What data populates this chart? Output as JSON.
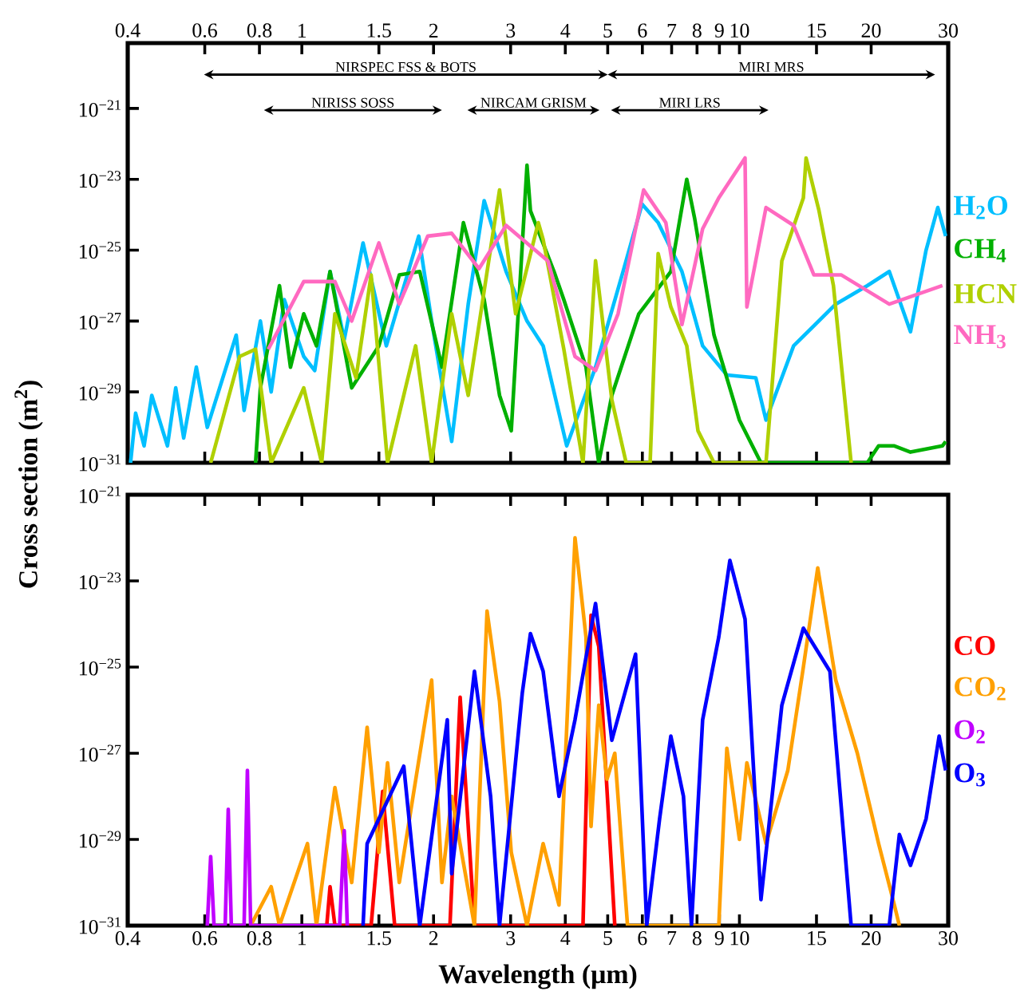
{
  "chart_data": [
    {
      "type": "line",
      "log": "xy",
      "ylabel": "Cross section (m$^{2}$)",
      "legend": "right",
      "xlim": [
        0.4,
        30
      ],
      "xticks": [
        0.4,
        0.6,
        0.8,
        1,
        1.5,
        2,
        3,
        4,
        5,
        6,
        7,
        8,
        9,
        10,
        15,
        20,
        30
      ],
      "ylim": [
        1e-31,
        7e-20
      ],
      "yticks": [
        {
          "value": 1e-31,
          "label": "10$^{−31}$"
        },
        {
          "value": 1e-29,
          "label": "10$^{−29}$"
        },
        {
          "value": 1e-27,
          "label": "10$^{−27}$"
        },
        {
          "value": 1e-25,
          "label": "10$^{−25}$"
        },
        {
          "value": 1e-23,
          "label": "10$^{−23}$"
        },
        {
          "value": 1e-21,
          "label": "10$^{−21}$"
        }
      ],
      "annotations": [
        "NIRSPEC FSS & BOTS",
        "MIRI MRS",
        "NIRISS SOSS",
        "NIRCAM GRISM",
        "MIRI LRS"
      ],
      "series": [
        {
          "name": "H$_{2}$O",
          "color": "#00bfff",
          "x": [
            0.406,
            0.417,
            0.436,
            0.454,
            0.493,
            0.515,
            0.537,
            0.574,
            0.608,
            0.708,
            0.738,
            0.804,
            0.851,
            0.912,
            1.01,
            1.07,
            1.16,
            1.25,
            1.38,
            1.56,
            1.85,
            1.98,
            2.2,
            2.4,
            2.61,
            2.93,
            3.27,
            3.56,
            4.03,
            4.69,
            5.42,
            5.99,
            6.52,
            7.39,
            8.24,
            9.36,
            10.9,
            11.5,
            13.3,
            16.6,
            19.6,
            22.0,
            24.6,
            26.7,
            28.4,
            29.6
          ],
          "values": [
            1e-31,
            2.5e-30,
            3e-31,
            8e-30,
            3e-31,
            1.3e-29,
            5e-31,
            5e-29,
            1e-30,
            4e-28,
            3e-30,
            1e-27,
            1e-29,
            4e-27,
            1e-28,
            4e-29,
            2.5e-26,
            3e-28,
            1.6e-25,
            2e-28,
            2.5e-25,
            1e-27,
            4e-31,
            3e-27,
            2.5e-24,
            2.5e-26,
            1e-27,
            2e-28,
            3e-31,
            5e-29,
            2.5e-26,
            2e-24,
            6e-25,
            2.5e-26,
            2e-28,
            3e-29,
            2.5e-29,
            1.6e-30,
            2e-28,
            3e-27,
            1e-26,
            2.5e-26,
            5e-28,
            1e-25,
            1.6e-24,
            2.5e-25
          ]
        },
        {
          "name": "CH$_{4}$",
          "color": "#00b000",
          "x": [
            0.784,
            0.804,
            0.889,
            0.942,
            1.01,
            1.08,
            1.16,
            1.3,
            1.5,
            1.67,
            1.86,
            2.09,
            2.34,
            2.61,
            2.83,
            3.01,
            3.27,
            3.33,
            3.77,
            3.97,
            4.46,
            4.77,
            5.11,
            5.89,
            6.97,
            7.58,
            7.9,
            8.75,
            10.0,
            11.2,
            19.6,
            20.8,
            22.6,
            24.6,
            29.1,
            29.6
          ],
          "values": [
            1e-31,
            1.3e-29,
            1e-26,
            5e-29,
            1.6e-27,
            2e-28,
            2.5e-26,
            1.3e-29,
            2e-28,
            2e-26,
            2.5e-26,
            5e-29,
            6e-25,
            4e-27,
            8e-30,
            8e-31,
            2.5e-23,
            1.3e-24,
            2.5e-26,
            4e-27,
            5e-29,
            1e-31,
            8e-30,
            1.6e-27,
            2.5e-26,
            1e-23,
            8e-25,
            4e-28,
            1.6e-30,
            1e-31,
            1e-31,
            3e-31,
            3e-31,
            2e-31,
            3e-31,
            4e-31
          ]
        },
        {
          "name": "HCN",
          "color": "#b0d000",
          "x": [
            0.619,
            0.721,
            0.784,
            0.851,
            1.01,
            1.11,
            1.19,
            1.33,
            1.44,
            1.57,
            1.82,
            1.98,
            2.2,
            2.4,
            2.83,
            3.08,
            3.47,
            3.56,
            3.97,
            4.39,
            4.69,
            5.11,
            5.51,
            6.25,
            6.52,
            6.97,
            7.58,
            8.04,
            8.75,
            11.5,
            12.5,
            14.0,
            14.2,
            15.2,
            16.4,
            18.0
          ],
          "values": [
            1e-31,
            1e-28,
            1.6e-28,
            1e-31,
            1.3e-29,
            1e-31,
            1.6e-27,
            2.5e-29,
            2e-26,
            1e-31,
            2e-28,
            1e-31,
            1.6e-27,
            8e-30,
            5e-24,
            1.6e-27,
            6e-25,
            2e-25,
            1.6e-28,
            1e-31,
            5e-26,
            6e-30,
            1e-31,
            1e-31,
            8e-26,
            2.5e-27,
            2e-28,
            8e-31,
            1e-31,
            1e-31,
            5e-26,
            3e-24,
            4e-23,
            1.3e-24,
            1e-26,
            1e-31
          ]
        },
        {
          "name": "NH$_{3}$",
          "color": "#ff69c0",
          "x": [
            0.838,
            1.01,
            1.19,
            1.3,
            1.5,
            1.67,
            1.94,
            2.2,
            2.54,
            2.93,
            3.65,
            4.21,
            4.69,
            5.28,
            6.04,
            6.79,
            7.39,
            8.24,
            8.97,
            10.3,
            10.4,
            11.5,
            13.3,
            14.8,
            17.1,
            22.0,
            29.1
          ],
          "values": [
            1.6e-28,
            1.3e-26,
            1.3e-26,
            1e-27,
            1.6e-25,
            3e-27,
            2.5e-25,
            3e-25,
            3e-26,
            5e-25,
            5e-26,
            1e-28,
            4e-29,
            1.6e-27,
            5e-24,
            6e-25,
            8e-28,
            4e-25,
            3e-24,
            4e-23,
            2.5e-27,
            1.6e-24,
            5e-25,
            2e-26,
            2e-26,
            3e-27,
            1e-26
          ]
        }
      ]
    },
    {
      "type": "line",
      "log": "xy",
      "xlabel": "Wavelength (μm)",
      "legend": "right",
      "xlim": [
        0.4,
        30
      ],
      "xticks": [
        0.4,
        0.6,
        0.8,
        1,
        1.5,
        2,
        3,
        4,
        5,
        6,
        7,
        8,
        9,
        10,
        15,
        20,
        30
      ],
      "ylim": [
        1e-31,
        1e-21
      ],
      "yticks": [
        {
          "value": 1e-31,
          "label": "10$^{−31}$"
        },
        {
          "value": 1e-29,
          "label": "10$^{−29}$"
        },
        {
          "value": 1e-27,
          "label": "10$^{−27}$"
        },
        {
          "value": 1e-25,
          "label": "10$^{−25}$"
        },
        {
          "value": 1e-23,
          "label": "10$^{−23}$"
        },
        {
          "value": 1e-21,
          "label": "10$^{−21}$"
        }
      ],
      "series": [
        {
          "name": "CO",
          "color": "#ff0000",
          "x": [
            1.14,
            1.16,
            1.19,
            1.44,
            1.53,
            1.63,
            2.18,
            2.3,
            2.48,
            4.39,
            4.58,
            4.77,
            5.19
          ],
          "values": [
            1e-31,
            8e-31,
            1e-31,
            1e-31,
            1.3e-28,
            1e-31,
            1e-31,
            2e-26,
            1e-31,
            1e-31,
            1.6e-24,
            3e-25,
            1e-31
          ]
        },
        {
          "name": "CO$_{2}$",
          "color": "#ffa000",
          "x": [
            0.764,
            0.851,
            0.889,
            1.03,
            1.08,
            1.19,
            1.3,
            1.41,
            1.5,
            1.57,
            1.67,
            1.98,
            2.09,
            2.2,
            2.48,
            2.65,
            2.83,
            3.01,
            3.27,
            3.56,
            3.87,
            4.21,
            4.46,
            4.58,
            4.77,
            4.98,
            5.19,
            5.55,
            8.97,
            9.36,
            10.0,
            10.4,
            11.5,
            12.9,
            14.0,
            15.1,
            16.6,
            18.6,
            20.8,
            22.6,
            23.2
          ],
          "values": [
            1e-31,
            8e-31,
            1e-31,
            8e-30,
            1e-31,
            1.6e-28,
            1e-30,
            4e-27,
            5e-30,
            6e-28,
            1e-30,
            5e-26,
            1e-30,
            1e-28,
            1e-31,
            2e-24,
            1.6e-26,
            5e-30,
            1e-31,
            8e-30,
            3e-31,
            1e-22,
            5e-25,
            2e-29,
            1.3e-26,
            2.5e-28,
            1e-27,
            1e-31,
            1e-31,
            1.3e-27,
            1e-29,
            6e-28,
            8e-30,
            4e-28,
            1e-25,
            2e-23,
            5e-26,
            1e-27,
            8e-30,
            3e-31,
            1e-31
          ]
        },
        {
          "name": "O$_{2}$",
          "color": "#c000ff",
          "x": [
            0.608,
            0.619,
            0.63,
            0.668,
            0.679,
            0.69,
            0.738,
            0.751,
            0.764,
            1.22,
            1.25,
            1.27
          ],
          "values": [
            1e-31,
            4e-30,
            1e-31,
            1e-31,
            5e-29,
            1e-31,
            1e-31,
            4e-28,
            1e-31,
            1e-31,
            1.6e-29,
            1e-31
          ]
        },
        {
          "name": "O$_{3}$",
          "color": "#0000ff",
          "x": [
            1.38,
            1.41,
            1.71,
            1.86,
            2.15,
            2.2,
            2.48,
            2.7,
            2.83,
            3.19,
            3.33,
            3.56,
            3.87,
            4.21,
            4.69,
            5.11,
            5.79,
            6.14,
            6.57,
            6.97,
            7.45,
            7.77,
            8.24,
            8.97,
            9.51,
            10.3,
            11.2,
            12.5,
            14.0,
            16.1,
            18.0,
            22.0,
            23.2,
            24.6,
            26.7,
            28.6,
            29.6
          ],
          "values": [
            1e-31,
            8e-30,
            5e-28,
            1e-31,
            6e-27,
            1.6e-30,
            8e-26,
            1e-28,
            1e-31,
            2.5e-26,
            6e-25,
            8e-26,
            1e-28,
            6e-27,
            3e-24,
            2e-27,
            2e-25,
            1e-31,
            3e-29,
            2.5e-27,
            1e-28,
            1e-31,
            6e-27,
            5e-25,
            3e-23,
            1.3e-24,
            4e-31,
            1.3e-26,
            8e-25,
            8e-26,
            1e-31,
            1e-31,
            1.3e-29,
            2.5e-30,
            3e-29,
            2.5e-27,
            4e-28
          ]
        }
      ]
    }
  ]
}
